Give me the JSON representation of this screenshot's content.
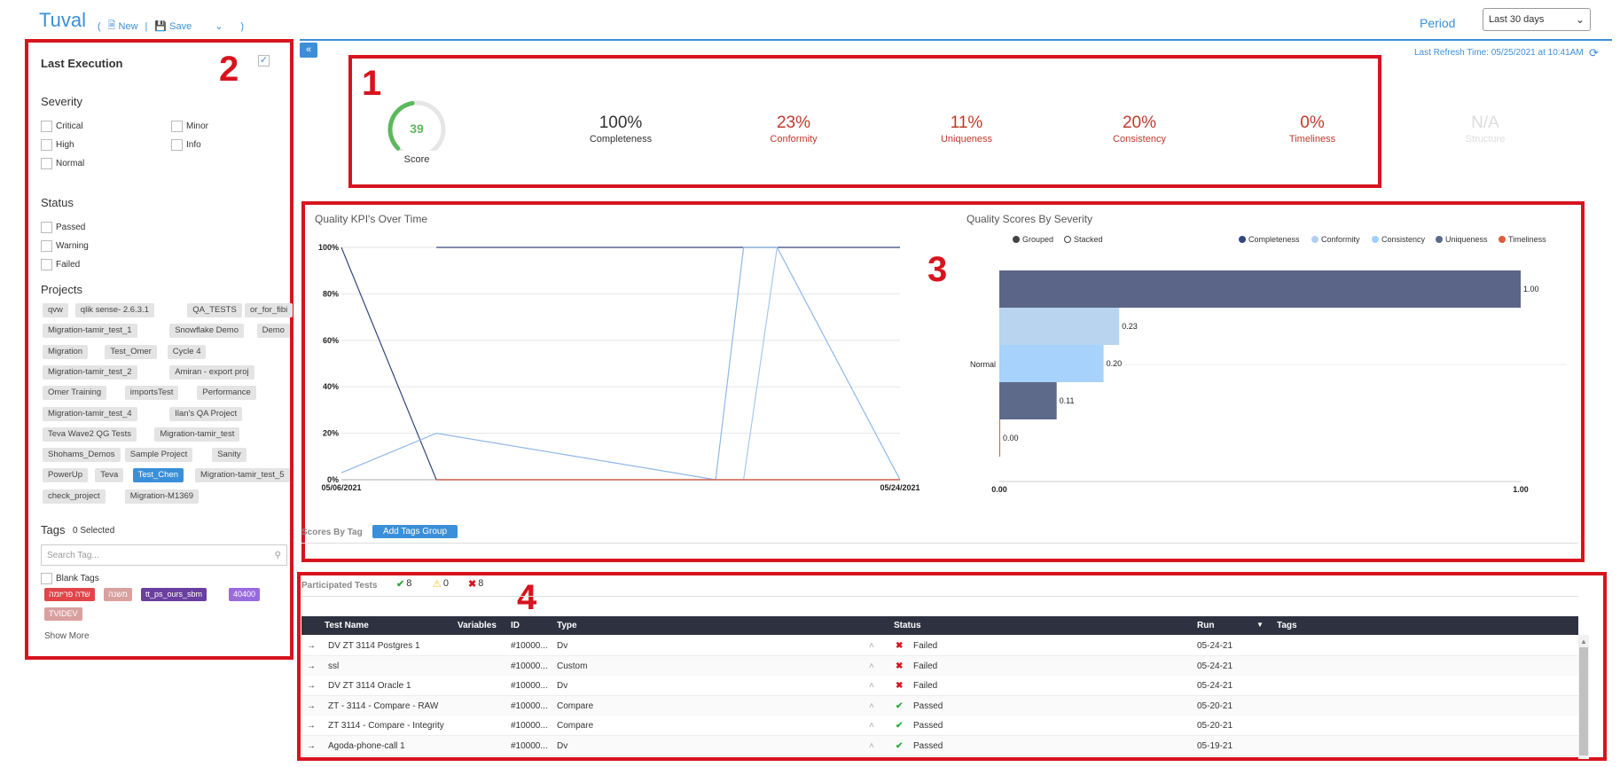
{
  "header": {
    "app_title": "Tuval",
    "new_label": "New",
    "save_label": "Save",
    "period_label": "Period",
    "period_value": "Last 30 days",
    "refresh_time": "Last Refresh Time: 05/25/2021 at 10:41AM",
    "accent_color": "#3a8fd8"
  },
  "annotations": [
    "1",
    "2",
    "3",
    "4"
  ],
  "sidebar": {
    "last_execution_label": "Last Execution",
    "last_execution_checked": true,
    "severity_title": "Severity",
    "severity": [
      "Critical",
      "Minor",
      "High",
      "Info",
      "Normal"
    ],
    "status_title": "Status",
    "status": [
      "Passed",
      "Warning",
      "Failed"
    ],
    "projects_title": "Projects",
    "projects": [
      "qvw",
      "qlik sense- 2.6.3.1",
      "QA_TESTS",
      "or_for_fibi",
      "Migration-tamir_test_1",
      "Snowflake Demo",
      "Demo",
      "Migration",
      "Test_Omer",
      "Cycle 4",
      "Migration-tamir_test_2",
      "Amiran - export proj",
      "Omer Training",
      "importsTest",
      "Performance",
      "Migration-tamir_test_4",
      "Ilan's QA Project",
      "Teva Wave2 QG Tests",
      "Migration-tamir_test",
      "Shohams_Demos",
      "Sample Project",
      "Sanity",
      "PowerUp",
      "Teva",
      "Test_Chen",
      "Migration-tamir_test_5",
      "check_project",
      "Migration-M1369"
    ],
    "selected_project": "Test_Chen",
    "tags_title": "Tags",
    "tags_selected": "0 Selected",
    "tag_search_placeholder": "Search Tag...",
    "blank_tags_label": "Blank Tags",
    "tags": [
      {
        "label": "שדה פריזמה",
        "color": "#e0454a"
      },
      {
        "label": "משנה",
        "color": "#d9a0a0"
      },
      {
        "label": "tt_ps_ours_sbm",
        "color": "#6a3fa0"
      },
      {
        "label": "40400",
        "color": "#9a6ae0"
      },
      {
        "label": "TVIDEV",
        "color": "#d9a0a0"
      }
    ],
    "show_more": "Show More"
  },
  "kpis": {
    "score": 39,
    "score_label": "Score",
    "items": [
      {
        "value": "100%",
        "label": "Completeness",
        "color": "#333333"
      },
      {
        "value": "23%",
        "label": "Conformity",
        "color": "#c0392b"
      },
      {
        "value": "11%",
        "label": "Uniqueness",
        "color": "#c0392b"
      },
      {
        "value": "20%",
        "label": "Consistency",
        "color": "#c0392b"
      },
      {
        "value": "0%",
        "label": "Timeliness",
        "color": "#c0392b"
      },
      {
        "value": "N/A",
        "label": "Structure",
        "color": "#dddddd"
      }
    ]
  },
  "chart_data": [
    {
      "type": "line",
      "title": "Quality KPI's Over Time",
      "yticks": [
        "100%",
        "80%",
        "60%",
        "40%",
        "20%",
        "0%"
      ],
      "xticks": [
        "05/06/2021",
        "05/24/2021"
      ],
      "ylim": [
        0,
        100
      ],
      "grid": true,
      "series": [
        {
          "color": "#34467c",
          "points": [
            [
              0,
              100
            ],
            [
              0.17,
              0
            ],
            [
              1,
              0
            ]
          ]
        },
        {
          "color": "#34467c",
          "points": [
            [
              0.17,
              100
            ],
            [
              1,
              100
            ]
          ]
        },
        {
          "color": "#8fb8e8",
          "points": [
            [
              0,
              3
            ],
            [
              0.17,
              20
            ],
            [
              0.67,
              0
            ],
            [
              0.72,
              100
            ],
            [
              0.78,
              100
            ],
            [
              1,
              0
            ]
          ]
        },
        {
          "color": "#a8c8ec",
          "points": [
            [
              0.72,
              0
            ],
            [
              0.78,
              100
            ]
          ]
        },
        {
          "color": "#e05a3a",
          "points": [
            [
              0.17,
              0
            ],
            [
              1,
              0
            ]
          ]
        }
      ]
    },
    {
      "type": "bar",
      "orientation": "horizontal",
      "title": "Quality Scores By Severity",
      "modes": [
        "Grouped",
        "Stacked"
      ],
      "selected_mode": "Grouped",
      "categories": [
        "Normal"
      ],
      "legend": [
        {
          "name": "Completeness",
          "color": "#34467c"
        },
        {
          "name": "Conformity",
          "color": "#b3cff0"
        },
        {
          "name": "Consistency",
          "color": "#9fd0ff"
        },
        {
          "name": "Uniqueness",
          "color": "#5a6a8c"
        },
        {
          "name": "Timeliness",
          "color": "#e05a3a"
        }
      ],
      "bars": [
        {
          "value": 1.0,
          "label": "1.00",
          "color": "#5a6588"
        },
        {
          "value": 0.23,
          "label": "0.23",
          "color": "#b8d4ef"
        },
        {
          "value": 0.2,
          "label": "0.20",
          "color": "#a6d2fb"
        },
        {
          "value": 0.11,
          "label": "0.11",
          "color": "#5d6a8a"
        },
        {
          "value": 0.0,
          "label": "0.00",
          "color": "#e05a3a"
        }
      ],
      "xticks": [
        "0.00",
        "1.00"
      ],
      "xlim": [
        0,
        1
      ]
    }
  ],
  "scores_by_tag": {
    "label": "Scores By Tag",
    "add_button": "Add Tags Group"
  },
  "tests": {
    "label": "Participated Tests",
    "passed_count": "8",
    "warning_count": "0",
    "failed_count": "8",
    "columns": [
      "Test Name",
      "Variables",
      "ID",
      "Type",
      "Status",
      "Run",
      "Tags"
    ],
    "rows": [
      {
        "name": "DV ZT 3114 Postgres  1",
        "id": "#10000...",
        "type": "Dv",
        "status": "Failed",
        "run": "05-24-21"
      },
      {
        "name": "ssl",
        "id": "#10000...",
        "type": "Custom",
        "status": "Failed",
        "run": "05-24-21"
      },
      {
        "name": "DV ZT 3114 Oracle  1",
        "id": "#10000...",
        "type": "Dv",
        "status": "Failed",
        "run": "05-24-21"
      },
      {
        "name": "ZT - 3114 - Compare - RAW",
        "id": "#10000...",
        "type": "Compare",
        "status": "Passed",
        "run": "05-20-21"
      },
      {
        "name": "ZT 3114 - Compare - Integrity",
        "id": "#10000...",
        "type": "Compare",
        "status": "Passed",
        "run": "05-20-21"
      },
      {
        "name": "Agoda-phone-call  1",
        "id": "#10000...",
        "type": "Dv",
        "status": "Passed",
        "run": "05-19-21"
      }
    ]
  }
}
